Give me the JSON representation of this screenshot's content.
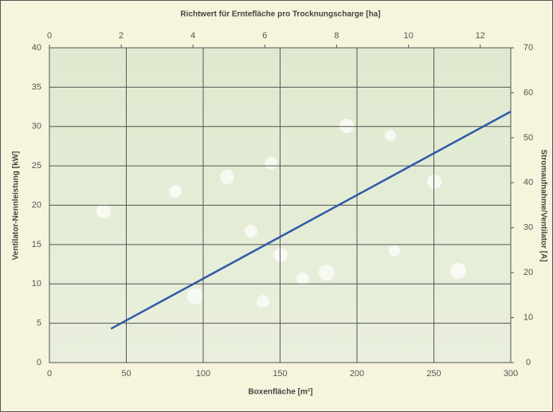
{
  "chart_data": {
    "type": "line",
    "x_label": "Boxenfläche [m²]",
    "x2_label": "Richtwert für Erntefläche pro Trocknungscharge  [ha]",
    "y_label": "Ventilator-Nennleistung [kW]",
    "y2_label": "Stromaufnahme/Ventilator [A]",
    "x": [
      40,
      300
    ],
    "values": [
      4.3,
      31.9
    ],
    "color": "#2f5aa8",
    "xlim": [
      0,
      300
    ],
    "xticks": [
      0,
      50,
      100,
      150,
      200,
      250,
      300
    ],
    "x2lim": [
      0,
      12.85
    ],
    "x2ticks": [
      0,
      2,
      4,
      6,
      8,
      10,
      12
    ],
    "ylim": [
      0,
      40
    ],
    "yticks": [
      0,
      5,
      10,
      15,
      20,
      25,
      30,
      35,
      40
    ],
    "y2lim": [
      0,
      70
    ],
    "y2ticks": [
      0,
      10,
      20,
      30,
      40,
      50,
      60,
      70
    ],
    "grid": true
  }
}
